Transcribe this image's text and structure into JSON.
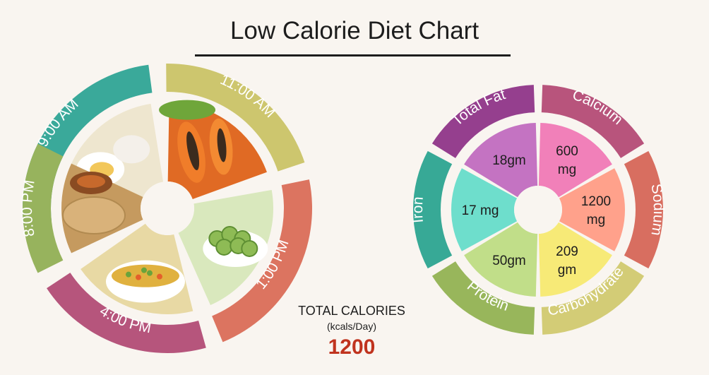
{
  "title": "Low Calorie Diet Chart",
  "meal_times": [
    {
      "label": "9:00 AM",
      "color": "#3aa99a"
    },
    {
      "label": "11:00 AM",
      "color": "#cdc66e"
    },
    {
      "label": "1:00 PM",
      "color": "#dc7460"
    },
    {
      "label": "4:00 PM",
      "color": "#b6557c"
    },
    {
      "label": "8:00 PM",
      "color": "#97b35d"
    }
  ],
  "meal_foods": [
    {
      "name": "boiled-eggs",
      "icon": "egg-icon"
    },
    {
      "name": "papaya",
      "icon": "papaya-icon"
    },
    {
      "name": "cucumber",
      "icon": "cucumber-icon"
    },
    {
      "name": "vegetable-soup",
      "icon": "soup-icon"
    },
    {
      "name": "roti-curry",
      "icon": "roti-icon"
    }
  ],
  "nutrients": [
    {
      "label": "Total Fat",
      "value_lines": [
        "18gm"
      ],
      "ring_color": "#953f8e",
      "fill_color": "#c473c2"
    },
    {
      "label": "Calcium",
      "value_lines": [
        "600",
        "mg"
      ],
      "ring_color": "#b8547c",
      "fill_color": "#f180b9"
    },
    {
      "label": "Sodium",
      "value_lines": [
        "1200",
        "mg"
      ],
      "ring_color": "#d86e60",
      "fill_color": "#ffa18b"
    },
    {
      "label": "Carbohydrate",
      "value_lines": [
        "209",
        "gm"
      ],
      "ring_color": "#d3cc76",
      "fill_color": "#f7ea77"
    },
    {
      "label": "Protein",
      "value_lines": [
        "50gm"
      ],
      "ring_color": "#98b65b",
      "fill_color": "#c1de89"
    },
    {
      "label": "Iron",
      "value_lines": [
        "17 mg"
      ],
      "ring_color": "#37a996",
      "fill_color": "#6edecc"
    }
  ],
  "totals": {
    "label": "TOTAL CALORIES",
    "unit": "(kcals/Day)",
    "value": "1200"
  }
}
